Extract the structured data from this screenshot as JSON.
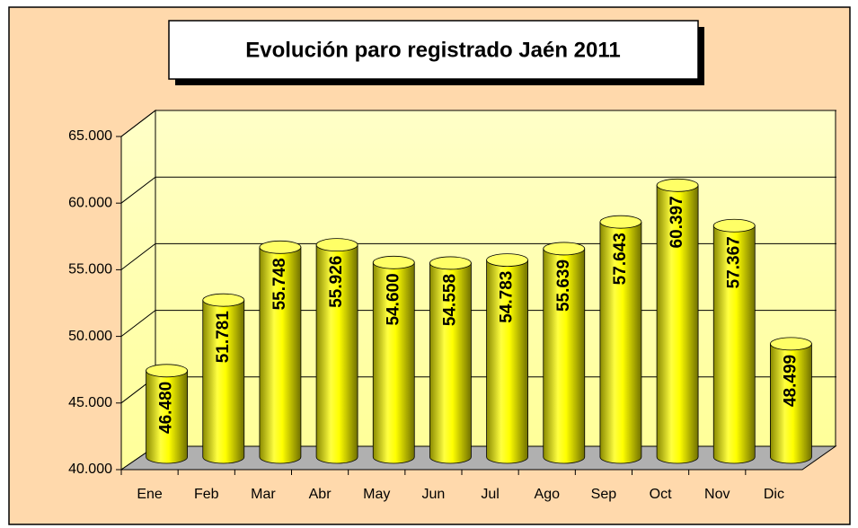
{
  "chart_data": {
    "type": "bar",
    "title": "Evolución paro registrado Jaén  2011",
    "categories": [
      "Ene",
      "Feb",
      "Mar",
      "Abr",
      "May",
      "Jun",
      "Jul",
      "Ago",
      "Sep",
      "Oct",
      "Nov",
      "Dic"
    ],
    "values": [
      46480,
      51781,
      55748,
      55926,
      54600,
      54558,
      54783,
      55639,
      57643,
      60397,
      57367,
      48499
    ],
    "value_labels": [
      "46.480",
      "51.781",
      "55.748",
      "55.926",
      "54.600",
      "54.558",
      "54.783",
      "55.639",
      "57.643",
      "60.397",
      "57.367",
      "48.499"
    ],
    "color": "#ffff00",
    "ylim": [
      40000,
      65000
    ],
    "yticks": [
      {
        "value": 40000,
        "label": "40.000"
      },
      {
        "value": 45000,
        "label": "45.000"
      },
      {
        "value": 50000,
        "label": "50.000"
      },
      {
        "value": 55000,
        "label": "55.000"
      },
      {
        "value": 60000,
        "label": "60.000"
      },
      {
        "value": 65000,
        "label": "65.000"
      }
    ],
    "grid": true
  }
}
